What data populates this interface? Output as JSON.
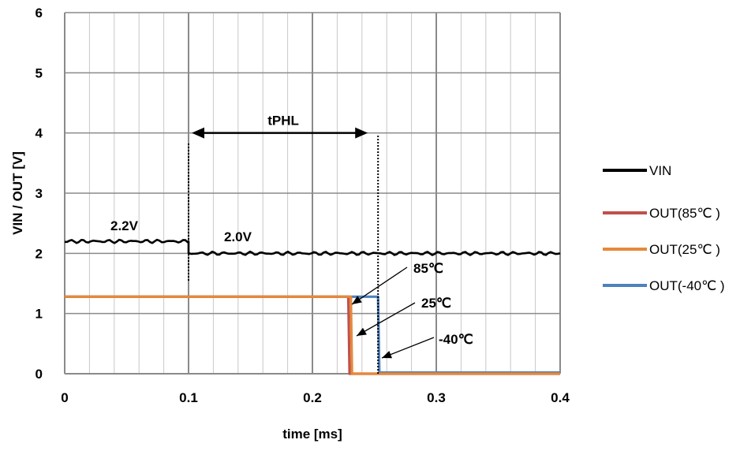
{
  "chart_data": {
    "type": "line",
    "xlabel": "time [ms]",
    "ylabel": "VIN / OUT [V]",
    "xlim": [
      0,
      0.4
    ],
    "ylim": [
      0,
      6
    ],
    "x_ticks": [
      "0",
      "0.1",
      "0.2",
      "0.3",
      "0.4"
    ],
    "y_ticks": [
      "0",
      "1",
      "2",
      "3",
      "4",
      "5",
      "6"
    ],
    "grid": true,
    "legend_position": "right",
    "series": [
      {
        "name": "VIN",
        "color": "#000000",
        "x": [
          0,
          0.1,
          0.1,
          0.4
        ],
        "y": [
          2.2,
          2.2,
          2.0,
          2.0
        ]
      },
      {
        "name": "OUT(85℃ )",
        "color": "#c0504d",
        "x": [
          0,
          0.229,
          0.23,
          0.4
        ],
        "y": [
          1.28,
          1.28,
          0.0,
          0.0
        ]
      },
      {
        "name": "OUT(25℃ )",
        "color": "#e6893a",
        "x": [
          0,
          0.231,
          0.232,
          0.4
        ],
        "y": [
          1.28,
          1.28,
          0.0,
          0.0
        ]
      },
      {
        "name": "OUT(-40℃ )",
        "color": "#4f81bd",
        "x": [
          0,
          0.253,
          0.254,
          0.4
        ],
        "y": [
          1.28,
          1.28,
          0.02,
          0.02
        ]
      }
    ],
    "annotations": {
      "tphl_label": "tPHL",
      "tphl_start_x": 0.1,
      "tphl_end_x": 0.253,
      "tphl_y": 4.0,
      "vin_high_label": "2.2V",
      "vin_low_label": "2.0V",
      "temp_labels": [
        "85℃",
        "25℃",
        "-40℃"
      ]
    }
  }
}
